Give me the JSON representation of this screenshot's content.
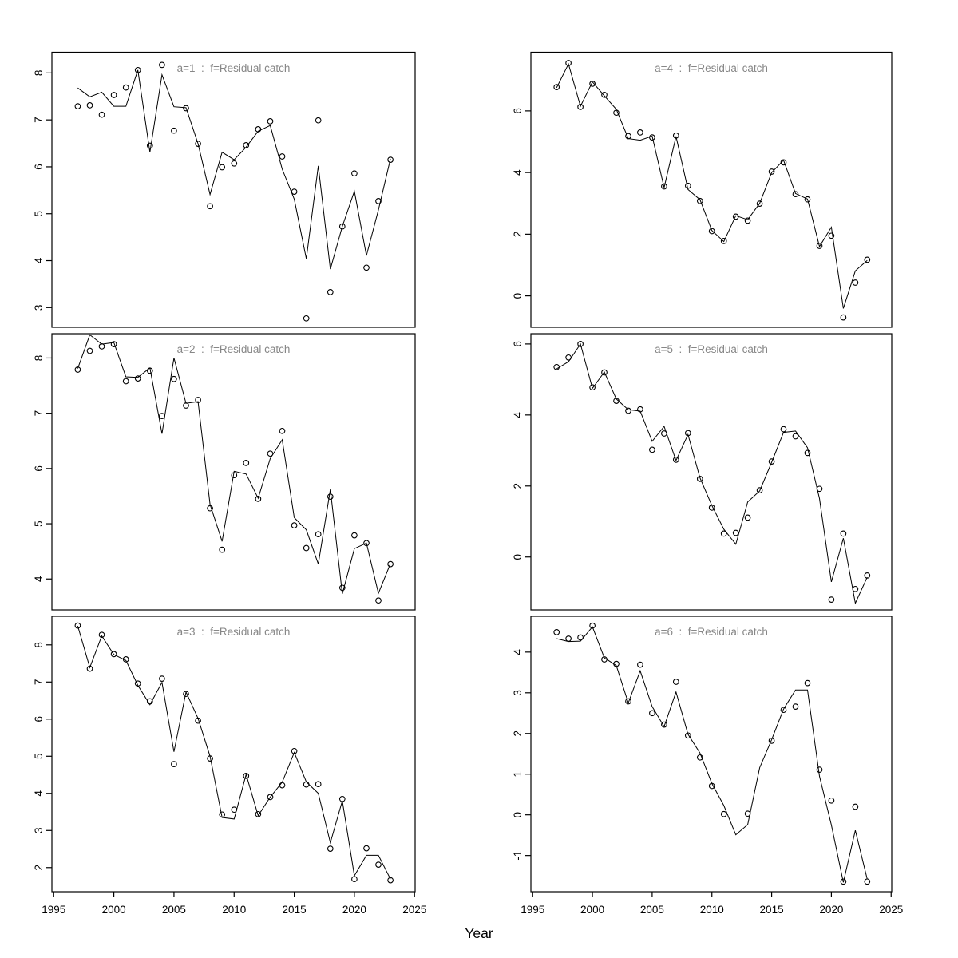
{
  "figure": {
    "xlabel": "Year",
    "background_color": "#ffffff",
    "axis_color": "#000000",
    "title_color": "#878787",
    "x_ticks": [
      1995,
      2000,
      2005,
      2010,
      2015,
      2020,
      2025
    ]
  },
  "chart_data": [
    {
      "type": "line",
      "title": "a=1  :  f=Residual catch",
      "panel": "a=1",
      "xlabel": "Year",
      "x": [
        1997,
        1998,
        1999,
        2000,
        2001,
        2002,
        2003,
        2004,
        2005,
        2006,
        2007,
        2008,
        2009,
        2010,
        2011,
        2012,
        2013,
        2014,
        2015,
        2016,
        2017,
        2018,
        2019,
        2020,
        2021,
        2022,
        2023
      ],
      "series": [
        {
          "name": "observed",
          "marker": "open-circle",
          "values": [
            7.29,
            7.31,
            7.11,
            7.53,
            7.69,
            8.06,
            6.45,
            8.17,
            6.77,
            7.25,
            6.49,
            5.16,
            5.99,
            6.07,
            6.46,
            6.8,
            6.97,
            6.22,
            5.47,
            2.77,
            6.99,
            3.33,
            4.73,
            5.86,
            3.85,
            5.27,
            6.15
          ]
        },
        {
          "name": "fitted",
          "marker": "line",
          "values": [
            7.68,
            7.49,
            7.59,
            7.29,
            7.29,
            8.06,
            6.31,
            7.96,
            7.28,
            7.26,
            6.49,
            5.41,
            6.31,
            6.15,
            6.42,
            6.76,
            6.88,
            5.95,
            5.31,
            4.04,
            6.02,
            3.82,
            4.73,
            5.48,
            4.11,
            5.08,
            6.17
          ]
        }
      ],
      "xlim": [
        1994.85,
        2025.05
      ],
      "ylim": [
        2.58,
        8.44
      ],
      "y_ticks": [
        3,
        4,
        5,
        6,
        7,
        8
      ],
      "x_axis_shown": false,
      "grid": false
    },
    {
      "type": "line",
      "title": "a=2  :  f=Residual catch",
      "panel": "a=2",
      "xlabel": "Year",
      "x": [
        1997,
        1998,
        1999,
        2000,
        2001,
        2002,
        2003,
        2004,
        2005,
        2006,
        2007,
        2008,
        2009,
        2010,
        2011,
        2012,
        2013,
        2014,
        2015,
        2016,
        2017,
        2018,
        2019,
        2020,
        2021,
        2022,
        2023
      ],
      "series": [
        {
          "name": "observed",
          "marker": "open-circle",
          "values": [
            7.79,
            8.13,
            8.21,
            8.25,
            7.58,
            7.63,
            7.77,
            6.95,
            7.62,
            7.14,
            7.24,
            5.28,
            4.53,
            5.88,
            6.1,
            5.45,
            6.27,
            6.68,
            4.97,
            4.56,
            4.81,
            5.49,
            3.84,
            4.79,
            4.65,
            3.61,
            4.27
          ]
        },
        {
          "name": "fitted",
          "marker": "line",
          "values": [
            7.81,
            8.42,
            8.25,
            8.28,
            7.66,
            7.65,
            7.82,
            6.63,
            8.0,
            7.18,
            7.21,
            5.35,
            4.68,
            5.95,
            5.9,
            5.46,
            6.18,
            6.52,
            5.11,
            4.89,
            4.27,
            5.62,
            3.73,
            4.55,
            4.65,
            3.74,
            4.28
          ]
        }
      ],
      "xlim": [
        1994.85,
        2025.05
      ],
      "ylim": [
        3.44,
        8.44
      ],
      "y_ticks": [
        4,
        5,
        6,
        7,
        8
      ],
      "x_axis_shown": false,
      "grid": false
    },
    {
      "type": "line",
      "title": "a=3  :  f=Residual catch",
      "panel": "a=3",
      "xlabel": "Year",
      "x": [
        1997,
        1998,
        1999,
        2000,
        2001,
        2002,
        2003,
        2004,
        2005,
        2006,
        2007,
        2008,
        2009,
        2010,
        2011,
        2012,
        2013,
        2014,
        2015,
        2016,
        2017,
        2018,
        2019,
        2020,
        2021,
        2022,
        2023
      ],
      "series": [
        {
          "name": "observed",
          "marker": "open-circle",
          "values": [
            8.52,
            7.36,
            8.27,
            7.75,
            7.61,
            6.96,
            6.48,
            7.09,
            4.79,
            6.68,
            5.96,
            4.94,
            3.43,
            3.56,
            4.47,
            3.44,
            3.9,
            4.22,
            5.14,
            4.24,
            4.25,
            2.51,
            3.85,
            1.69,
            2.52,
            2.08,
            1.66
          ]
        },
        {
          "name": "fitted",
          "marker": "line",
          "values": [
            8.51,
            7.39,
            8.24,
            7.74,
            7.58,
            6.91,
            6.39,
            6.99,
            5.12,
            6.73,
            6.02,
            5.0,
            3.35,
            3.31,
            4.51,
            3.4,
            3.9,
            4.3,
            5.1,
            4.31,
            4.0,
            2.67,
            3.8,
            1.78,
            2.33,
            2.33,
            1.69
          ]
        }
      ],
      "xlim": [
        1994.85,
        2025.05
      ],
      "ylim": [
        1.35,
        8.77
      ],
      "y_ticks": [
        2,
        3,
        4,
        5,
        6,
        7,
        8
      ],
      "x_axis_shown": true,
      "grid": false
    },
    {
      "type": "line",
      "title": "a=4  :  f=Residual catch",
      "panel": "a=4",
      "xlabel": "Year",
      "x": [
        1997,
        1998,
        1999,
        2000,
        2001,
        2002,
        2003,
        2004,
        2005,
        2006,
        2007,
        2008,
        2009,
        2010,
        2011,
        2012,
        2013,
        2014,
        2015,
        2016,
        2017,
        2018,
        2019,
        2020,
        2021,
        2022,
        2023
      ],
      "series": [
        {
          "name": "observed",
          "marker": "open-circle",
          "values": [
            6.77,
            7.55,
            6.13,
            6.88,
            6.52,
            5.94,
            5.18,
            5.3,
            5.14,
            3.55,
            5.2,
            3.57,
            3.08,
            2.1,
            1.78,
            2.57,
            2.44,
            2.99,
            4.03,
            4.33,
            3.3,
            3.13,
            1.62,
            1.95,
            -0.7,
            0.43,
            1.17
          ]
        },
        {
          "name": "fitted",
          "marker": "line",
          "values": [
            6.75,
            7.52,
            6.15,
            6.94,
            6.49,
            6.05,
            5.1,
            5.05,
            5.18,
            3.51,
            5.17,
            3.45,
            3.12,
            2.12,
            1.76,
            2.6,
            2.47,
            3.0,
            4.0,
            4.4,
            3.32,
            3.14,
            1.6,
            2.23,
            -0.41,
            0.81,
            1.15
          ]
        }
      ],
      "xlim": [
        1994.85,
        2025.05
      ],
      "ylim": [
        -1.02,
        7.9
      ],
      "y_ticks": [
        0,
        2,
        4,
        6
      ],
      "x_axis_shown": false,
      "grid": false
    },
    {
      "type": "line",
      "title": "a=5  :  f=Residual catch",
      "panel": "a=5",
      "xlabel": "Year",
      "x": [
        1997,
        1998,
        1999,
        2000,
        2001,
        2002,
        2003,
        2004,
        2005,
        2006,
        2007,
        2008,
        2009,
        2010,
        2011,
        2012,
        2013,
        2014,
        2015,
        2016,
        2017,
        2018,
        2019,
        2020,
        2021,
        2022,
        2023
      ],
      "series": [
        {
          "name": "observed",
          "marker": "open-circle",
          "values": [
            5.35,
            5.62,
            6.0,
            4.78,
            5.2,
            4.4,
            4.12,
            4.16,
            3.02,
            3.48,
            2.74,
            3.49,
            2.2,
            1.39,
            0.66,
            0.68,
            1.11,
            1.88,
            2.69,
            3.6,
            3.4,
            2.93,
            1.92,
            -1.2,
            0.66,
            -0.9,
            -0.52
          ]
        },
        {
          "name": "fitted",
          "marker": "line",
          "values": [
            5.3,
            5.5,
            6.0,
            4.75,
            5.21,
            4.45,
            4.15,
            4.11,
            3.26,
            3.68,
            2.72,
            3.45,
            2.23,
            1.45,
            0.78,
            0.36,
            1.55,
            1.86,
            2.67,
            3.51,
            3.55,
            3.08,
            1.65,
            -0.7,
            0.53,
            -1.3,
            -0.57
          ]
        }
      ],
      "xlim": [
        1994.85,
        2025.05
      ],
      "ylim": [
        -1.49,
        6.29
      ],
      "y_ticks": [
        0,
        2,
        4,
        6
      ],
      "x_axis_shown": false,
      "grid": false
    },
    {
      "type": "line",
      "title": "a=6  :  f=Residual catch",
      "panel": "a=6",
      "xlabel": "Year",
      "x": [
        1997,
        1998,
        1999,
        2000,
        2001,
        2002,
        2003,
        2004,
        2005,
        2006,
        2007,
        2008,
        2009,
        2010,
        2011,
        2012,
        2013,
        2014,
        2015,
        2016,
        2017,
        2018,
        2019,
        2020,
        2021,
        2022,
        2023
      ],
      "series": [
        {
          "name": "observed",
          "marker": "open-circle",
          "values": [
            4.49,
            4.33,
            4.36,
            4.65,
            3.82,
            3.71,
            2.79,
            3.69,
            2.5,
            2.22,
            3.27,
            1.95,
            1.41,
            0.71,
            0.02,
            null,
            0.03,
            null,
            1.82,
            2.58,
            2.66,
            3.24,
            1.11,
            0.35,
            -1.64,
            0.2,
            -1.64
          ]
        },
        {
          "name": "fitted",
          "marker": "line",
          "values": [
            4.33,
            4.26,
            4.27,
            4.62,
            3.86,
            3.67,
            2.75,
            3.54,
            2.66,
            2.17,
            3.02,
            1.98,
            1.52,
            0.77,
            0.23,
            -0.49,
            -0.24,
            1.16,
            1.85,
            2.6,
            3.07,
            3.07,
            0.95,
            -0.25,
            -1.66,
            -0.38,
            -1.58
          ]
        }
      ],
      "xlim": [
        1994.85,
        2025.05
      ],
      "ylim": [
        -1.89,
        4.88
      ],
      "y_ticks": [
        -1,
        0,
        1,
        2,
        3,
        4
      ],
      "x_axis_shown": true,
      "grid": false
    }
  ]
}
